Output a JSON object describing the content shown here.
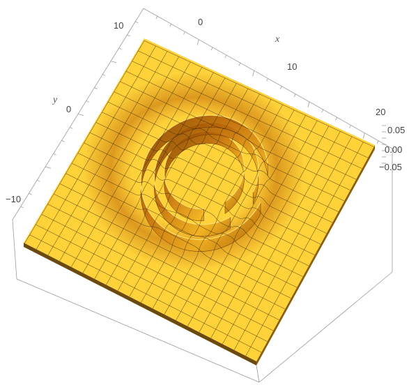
{
  "chart_data": {
    "type": "surface3d",
    "title": "",
    "xlabel": "x",
    "ylabel": "y",
    "zlabel": "",
    "x_ticks": [
      "0",
      "10",
      "20"
    ],
    "y_ticks": [
      "10",
      "0",
      "−10"
    ],
    "z_ticks": [
      "0.05",
      "0.00",
      "−0.05"
    ],
    "xlim": [
      -15,
      22
    ],
    "ylim": [
      -18,
      15
    ],
    "zlim": [
      -0.06,
      0.06
    ],
    "mesh": true,
    "boxed": true,
    "surface_description_values": {
      "ring_center": [
        3,
        0
      ],
      "ring_radii": [
        5.5,
        7.2,
        8.8
      ],
      "spiral": true
    },
    "colors": {
      "surface_base": "#ffd23a",
      "surface_light": "#ffe070",
      "surface_shadow": "#c06a08",
      "surface_dark": "#6a3400",
      "mesh": "#3a2a10",
      "box": "#9a9a9a",
      "background": "#ffffff"
    }
  }
}
